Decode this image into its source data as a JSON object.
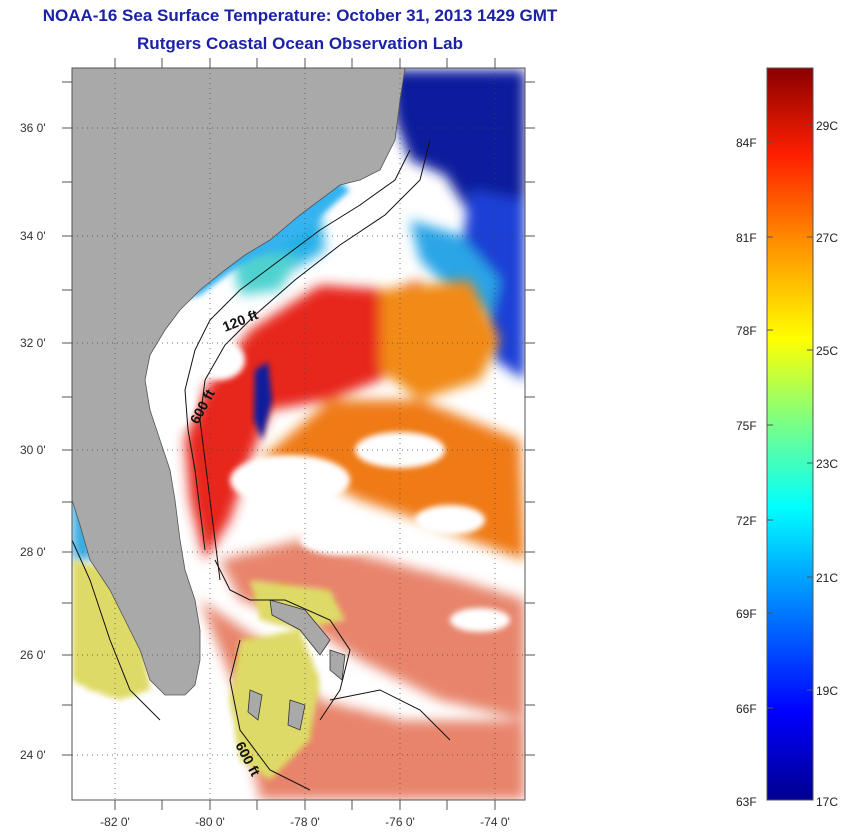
{
  "header": {
    "title": "NOAA-16 Sea Surface Temperature:  October 31, 2013 1429 GMT",
    "subtitle": "Rutgers Coastal Ocean Observation Lab"
  },
  "map": {
    "lat_ticks": [
      "36 0'",
      "34 0'",
      "32 0'",
      "30 0'",
      "28 0'",
      "26 0'",
      "24 0'"
    ],
    "lon_ticks": [
      "-82 0'",
      "-80 0'",
      "-78 0'",
      "-76 0'",
      "-74 0'"
    ],
    "contour_labels": [
      "120 ft",
      "600 ft",
      "600 ft"
    ],
    "colors": {
      "land": "#a9a9a9",
      "cloud": "#ffffff",
      "sst_warm": "#e8231c",
      "sst_orange": "#f07a12",
      "sst_yellow": "#e8e021",
      "sst_cold": "#0a1f9a"
    }
  },
  "colorbar": {
    "fahrenheit_labels": [
      "84F",
      "81F",
      "78F",
      "75F",
      "72F",
      "69F",
      "66F",
      "63F"
    ],
    "celsius_labels": [
      "29C",
      "27C",
      "25C",
      "23C",
      "21C",
      "19C",
      "17C"
    ],
    "range_c": [
      17,
      30
    ],
    "stops": [
      "#00008f",
      "#0000ff",
      "#00a0ff",
      "#00ffff",
      "#7fff7f",
      "#ffff00",
      "#ff9000",
      "#ff2000",
      "#8b0000"
    ]
  }
}
